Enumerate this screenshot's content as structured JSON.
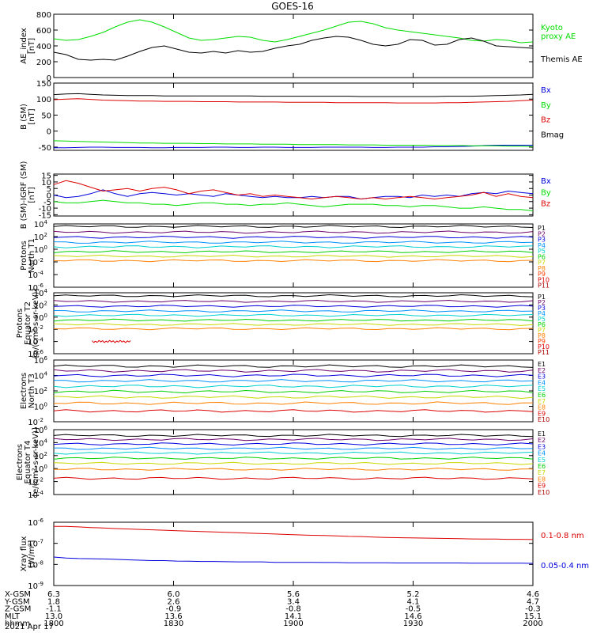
{
  "title": "GOES-16",
  "date": "2021 Apr 17",
  "ephemeris": {
    "rows": [
      {
        "label": "X-GSM",
        "values": [
          "6.3",
          "6.0",
          "5.6",
          "5.2",
          "4.6"
        ]
      },
      {
        "label": "Y-GSM",
        "values": [
          "1.8",
          "2.6",
          "3.4",
          "4.1",
          "4.7"
        ]
      },
      {
        "label": "Z-GSM",
        "values": [
          "-1.1",
          "-0.9",
          "-0.8",
          "-0.5",
          "-0.3"
        ]
      },
      {
        "label": "MLT",
        "values": [
          "13.0",
          "13.6",
          "14.1",
          "14.6",
          "15.1"
        ]
      },
      {
        "label": "hhmm",
        "values": [
          "1800",
          "1830",
          "1900",
          "1930",
          "2000"
        ]
      }
    ]
  },
  "chart_data": [
    {
      "type": "line",
      "ylabel": "AE_index\n[nT]",
      "yticks": [
        "0",
        "200",
        "400",
        "600",
        "800"
      ],
      "ylim": [
        0,
        800
      ],
      "x_range_hhmm": [
        "1800",
        "2000"
      ],
      "series": [
        {
          "name": "Kyoto\nproxy AE",
          "color": "#00dd00",
          "values": [
            490,
            470,
            480,
            520,
            570,
            640,
            700,
            730,
            700,
            640,
            570,
            500,
            470,
            480,
            500,
            520,
            510,
            470,
            450,
            480,
            520,
            560,
            600,
            650,
            700,
            710,
            680,
            630,
            600,
            580,
            560,
            540,
            520,
            500,
            470,
            460,
            480,
            470,
            440,
            450
          ]
        },
        {
          "name": "Themis AE",
          "color": "#000000",
          "values": [
            320,
            290,
            230,
            220,
            230,
            220,
            270,
            330,
            380,
            400,
            360,
            320,
            310,
            330,
            310,
            340,
            320,
            330,
            370,
            400,
            420,
            470,
            500,
            520,
            510,
            470,
            420,
            400,
            420,
            480,
            470,
            410,
            420,
            480,
            500,
            460,
            400,
            390,
            380,
            370
          ]
        }
      ]
    },
    {
      "type": "line",
      "ylabel": "B (SM)\n[nT]",
      "yticks": [
        "-50",
        "0",
        "50",
        "100",
        "150"
      ],
      "ylim": [
        -60,
        150
      ],
      "series": [
        {
          "name": "Bx",
          "color": "#0000dd",
          "values": [
            -52,
            -52,
            -51,
            -50,
            -50,
            -51,
            -51,
            -51,
            -52,
            -52,
            -51,
            -51,
            -51,
            -50,
            -50,
            -51,
            -51,
            -50,
            -50,
            -51,
            -51,
            -51,
            -50,
            -50,
            -50,
            -50,
            -51,
            -51,
            -50,
            -50,
            -50,
            -49,
            -49,
            -48,
            -47,
            -45,
            -44,
            -44,
            -44,
            -44
          ]
        },
        {
          "name": "By",
          "color": "#00dd00",
          "values": [
            -30,
            -31,
            -32,
            -33,
            -34,
            -35,
            -36,
            -37,
            -37,
            -38,
            -38,
            -38,
            -39,
            -39,
            -40,
            -40,
            -40,
            -41,
            -41,
            -41,
            -42,
            -42,
            -42,
            -42,
            -43,
            -43,
            -43,
            -44,
            -44,
            -44,
            -44,
            -45,
            -45,
            -45,
            -46,
            -46,
            -46,
            -47,
            -47,
            -48
          ]
        },
        {
          "name": "Bz",
          "color": "#dd0000",
          "values": [
            98,
            100,
            101,
            99,
            97,
            96,
            95,
            94,
            94,
            93,
            93,
            93,
            92,
            92,
            92,
            91,
            91,
            91,
            91,
            90,
            90,
            90,
            90,
            89,
            89,
            89,
            89,
            89,
            88,
            88,
            88,
            88,
            89,
            89,
            90,
            91,
            92,
            93,
            95,
            97
          ]
        },
        {
          "name": "Bmag",
          "color": "#000000",
          "values": [
            114,
            116,
            117,
            115,
            113,
            112,
            111,
            111,
            111,
            110,
            110,
            110,
            110,
            110,
            110,
            110,
            110,
            109,
            109,
            109,
            109,
            109,
            109,
            109,
            109,
            108,
            108,
            108,
            108,
            108,
            108,
            108,
            109,
            109,
            109,
            110,
            111,
            112,
            113,
            115
          ]
        }
      ]
    },
    {
      "type": "line",
      "ylabel": "B (SM)-IGRF (SM)\n[nT]",
      "yticks": [
        "-15",
        "-10",
        "-5",
        "0",
        "5",
        "10",
        "15"
      ],
      "ylim": [
        -16,
        16
      ],
      "series": [
        {
          "name": "Bx",
          "color": "#0000dd",
          "values": [
            0,
            -2,
            -1,
            1,
            4,
            1,
            -1,
            1,
            2,
            1,
            0,
            1,
            0,
            -1,
            1,
            0,
            -1,
            -2,
            -1,
            -2,
            -2,
            -1,
            -2,
            -1,
            -1,
            -3,
            -2,
            -1,
            -1,
            -2,
            0,
            -1,
            0,
            -1,
            1,
            2,
            1,
            3,
            2,
            1
          ]
        },
        {
          "name": "By",
          "color": "#00dd00",
          "values": [
            -5,
            -6,
            -6,
            -5,
            -4,
            -5,
            -6,
            -6,
            -7,
            -7,
            -8,
            -7,
            -6,
            -6,
            -7,
            -7,
            -8,
            -7,
            -7,
            -6,
            -7,
            -8,
            -9,
            -8,
            -7,
            -7,
            -7,
            -8,
            -8,
            -9,
            -8,
            -8,
            -9,
            -10,
            -10,
            -9,
            -10,
            -11,
            -11,
            -12
          ]
        },
        {
          "name": "Bz",
          "color": "#dd0000",
          "values": [
            8,
            11,
            9,
            6,
            3,
            4,
            5,
            3,
            5,
            6,
            4,
            1,
            3,
            4,
            2,
            0,
            1,
            -1,
            0,
            -1,
            -2,
            -3,
            -2,
            -1,
            -2,
            -3,
            -2,
            -3,
            -2,
            -1,
            -2,
            -3,
            -2,
            -1,
            0,
            2,
            -1,
            1,
            -1,
            -2
          ]
        }
      ]
    },
    {
      "type": "line",
      "ylabel": "Protons\nNorth T1",
      "y_log_decades": [
        -6,
        4
      ],
      "yticks": [
        "10^-6",
        "10^-4",
        "10^-2",
        "10^0",
        "10^2",
        "10^4"
      ],
      "series": [
        {
          "name": "P1",
          "color": "#000000",
          "level": 3.6
        },
        {
          "name": "P2",
          "color": "#6a006a",
          "level": 2.7
        },
        {
          "name": "P3",
          "color": "#0000dd",
          "level": 1.9
        },
        {
          "name": "P4",
          "color": "#0090ff",
          "level": 1.1
        },
        {
          "name": "P5",
          "color": "#00d0d0",
          "level": 0.4
        },
        {
          "name": "P6",
          "color": "#00d000",
          "level": -0.4
        },
        {
          "name": "P7",
          "color": "#c8d800",
          "level": -1.1
        },
        {
          "name": "P8",
          "color": "#ff8000",
          "level": -1.8
        },
        {
          "name": "P9",
          "color": "#ff4000",
          "level": null
        },
        {
          "name": "P10",
          "color": "#dd0000",
          "level": null
        },
        {
          "name": "P11",
          "color": "#aa0000",
          "level": null
        }
      ]
    },
    {
      "type": "line",
      "ylabel": "Protons\nEquator T2\n[p/(cm²-s-sr-keV)]",
      "y_log_decades": [
        -6,
        4
      ],
      "yticks": [
        "10^-6",
        "10^-4",
        "10^-2",
        "10^0",
        "10^2",
        "10^4"
      ],
      "series": [
        {
          "name": "P1",
          "color": "#000000",
          "level": 3.5
        },
        {
          "name": "P2",
          "color": "#6a006a",
          "level": 2.6
        },
        {
          "name": "P3",
          "color": "#0000dd",
          "level": 1.8
        },
        {
          "name": "P4",
          "color": "#0090ff",
          "level": 1.0
        },
        {
          "name": "P5",
          "color": "#00d0d0",
          "level": 0.3
        },
        {
          "name": "P6",
          "color": "#00d000",
          "level": -0.5
        },
        {
          "name": "P7",
          "color": "#c8d800",
          "level": -1.2
        },
        {
          "name": "P8",
          "color": "#ff8000",
          "level": -1.9
        },
        {
          "name": "P9",
          "color": "#ff4000",
          "level": null
        },
        {
          "name": "P10",
          "color": "#dd0000",
          "level": -4.0,
          "x_span": [
            0.08,
            0.16
          ]
        },
        {
          "name": "P11",
          "color": "#aa0000",
          "level": null
        }
      ]
    },
    {
      "type": "line",
      "ylabel": "Electrons\nNorth T3",
      "y_log_decades": [
        -2,
        6
      ],
      "yticks": [
        "10^-2",
        "10^0",
        "10^2",
        "10^4",
        "10^6"
      ],
      "series": [
        {
          "name": "E1",
          "color": "#000000",
          "level": 5.2
        },
        {
          "name": "E2",
          "color": "#6a006a",
          "level": 4.6
        },
        {
          "name": "E3",
          "color": "#0000dd",
          "level": 4.0
        },
        {
          "name": "E4",
          "color": "#0090ff",
          "level": 3.3
        },
        {
          "name": "E5",
          "color": "#00d0d0",
          "level": 2.6
        },
        {
          "name": "E6",
          "color": "#00d000",
          "level": 1.9
        },
        {
          "name": "E7",
          "color": "#c8d800",
          "level": 1.2
        },
        {
          "name": "E8",
          "color": "#ff8000",
          "level": 0.4
        },
        {
          "name": "E9",
          "color": "#dd0000",
          "level": -0.6
        },
        {
          "name": "E10",
          "color": "#aa0000",
          "level": null
        }
      ]
    },
    {
      "type": "line",
      "ylabel": "Electrons\nEquator T4\n[e/(cm²-s-sr-keV)]",
      "y_log_decades": [
        -4,
        6
      ],
      "yticks": [
        "10^-4",
        "10^-2",
        "10^0",
        "10^2",
        "10^4",
        "10^6"
      ],
      "series": [
        {
          "name": "E1",
          "color": "#000000",
          "level": 5.1
        },
        {
          "name": "E2",
          "color": "#6a006a",
          "level": 4.5
        },
        {
          "name": "E3",
          "color": "#0000dd",
          "level": 3.8
        },
        {
          "name": "E4",
          "color": "#0090ff",
          "level": 3.1
        },
        {
          "name": "E5",
          "color": "#00d0d0",
          "level": 2.4
        },
        {
          "name": "E6",
          "color": "#00d000",
          "level": 1.6
        },
        {
          "name": "E7",
          "color": "#c8d800",
          "level": 0.8
        },
        {
          "name": "E8",
          "color": "#ff8000",
          "level": -0.1
        },
        {
          "name": "E9",
          "color": "#dd0000",
          "level": -1.5
        },
        {
          "name": "E10",
          "color": "#aa0000",
          "level": null
        }
      ]
    },
    {
      "type": "line",
      "ylabel": "Xray flux\n[W/m²]",
      "y_log_decades": [
        -9,
        -6
      ],
      "yticks": [
        "10^-9",
        "10^-8",
        "10^-7",
        "10^-6"
      ],
      "series": [
        {
          "name": "0.1-0.8 nm",
          "color": "#dd0000",
          "values": [
            -6.2,
            -6.2,
            -6.22,
            -6.25,
            -6.27,
            -6.3,
            -6.32,
            -6.34,
            -6.36,
            -6.38,
            -6.4,
            -6.42,
            -6.44,
            -6.46,
            -6.48,
            -6.5,
            -6.52,
            -6.54,
            -6.56,
            -6.58,
            -6.6,
            -6.62,
            -6.63,
            -6.65,
            -6.67,
            -6.68,
            -6.7,
            -6.72,
            -6.73,
            -6.74,
            -6.75,
            -6.76,
            -6.77,
            -6.78,
            -6.79,
            -6.8,
            -6.8,
            -6.81,
            -6.81,
            -6.82
          ]
        },
        {
          "name": "0.05-0.4 nm",
          "color": "#0000dd",
          "values": [
            -7.65,
            -7.7,
            -7.72,
            -7.73,
            -7.74,
            -7.76,
            -7.78,
            -7.8,
            -7.82,
            -7.82,
            -7.84,
            -7.85,
            -7.86,
            -7.86,
            -7.87,
            -7.88,
            -7.88,
            -7.88,
            -7.9,
            -7.9,
            -7.9,
            -7.9,
            -7.91,
            -7.91,
            -7.92,
            -7.92,
            -7.92,
            -7.92,
            -7.93,
            -7.93,
            -7.93,
            -7.93,
            -7.93,
            -7.93,
            -7.94,
            -7.94,
            -7.94,
            -7.94,
            -7.94,
            -7.95
          ]
        }
      ]
    }
  ]
}
